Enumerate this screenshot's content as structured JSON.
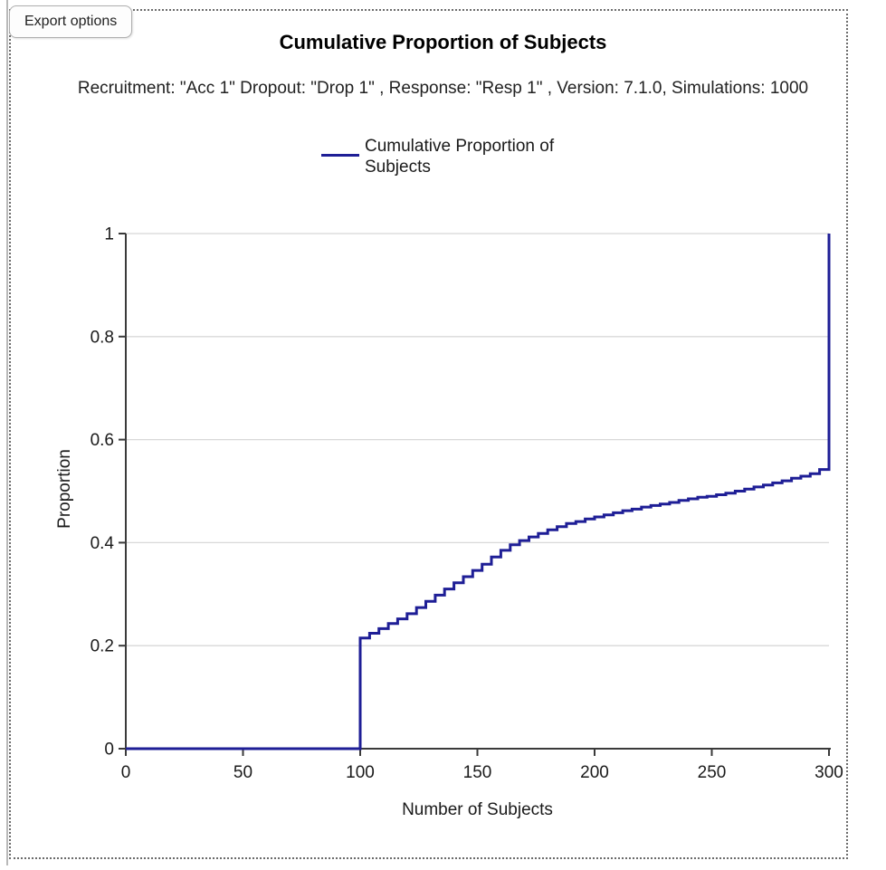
{
  "toolbar": {
    "export_button_label": "Export options"
  },
  "colors": {
    "line": "#1e1e96",
    "grid": "#d8d8d8",
    "axis": "#3a3a3a",
    "tick_text": "#1a1a1a",
    "dotted_border": "#6b6b6b"
  },
  "chart_data": {
    "type": "line",
    "title": "Cumulative Proportion of Subjects",
    "subtitle": "Recruitment: \"Acc 1\" Dropout: \"Drop 1\" , Response: \"Resp 1\" , Version: 7.1.0, Simulations: 1000",
    "xlabel": "Number of Subjects",
    "ylabel": "Proportion",
    "xlim": [
      0,
      300
    ],
    "ylim": [
      0,
      1
    ],
    "x_ticks": [
      0,
      50,
      100,
      150,
      200,
      250,
      300
    ],
    "y_ticks": [
      0,
      0.2,
      0.4,
      0.6,
      0.8,
      1
    ],
    "y_tick_labels": [
      "0",
      "0.2",
      "0.4",
      "0.6",
      "0.8",
      "1"
    ],
    "grid": "horizontal",
    "legend_position": "top-center",
    "series": [
      {
        "name": "Cumulative Proportion of Subjects",
        "color": "#1e1e96",
        "step": true,
        "points": [
          [
            0,
            0
          ],
          [
            100,
            0
          ],
          [
            100,
            0.215
          ],
          [
            104,
            0.224
          ],
          [
            108,
            0.233
          ],
          [
            112,
            0.243
          ],
          [
            116,
            0.252
          ],
          [
            120,
            0.262
          ],
          [
            124,
            0.274
          ],
          [
            128,
            0.286
          ],
          [
            132,
            0.298
          ],
          [
            136,
            0.31
          ],
          [
            140,
            0.322
          ],
          [
            144,
            0.334
          ],
          [
            148,
            0.346
          ],
          [
            152,
            0.358
          ],
          [
            156,
            0.372
          ],
          [
            160,
            0.385
          ],
          [
            164,
            0.396
          ],
          [
            168,
            0.404
          ],
          [
            172,
            0.411
          ],
          [
            176,
            0.418
          ],
          [
            180,
            0.425
          ],
          [
            184,
            0.431
          ],
          [
            188,
            0.437
          ],
          [
            192,
            0.441
          ],
          [
            196,
            0.446
          ],
          [
            200,
            0.45
          ],
          [
            204,
            0.454
          ],
          [
            208,
            0.458
          ],
          [
            212,
            0.462
          ],
          [
            216,
            0.465
          ],
          [
            220,
            0.469
          ],
          [
            224,
            0.472
          ],
          [
            228,
            0.475
          ],
          [
            232,
            0.478
          ],
          [
            236,
            0.482
          ],
          [
            240,
            0.485
          ],
          [
            244,
            0.488
          ],
          [
            248,
            0.49
          ],
          [
            252,
            0.493
          ],
          [
            256,
            0.496
          ],
          [
            260,
            0.5
          ],
          [
            264,
            0.504
          ],
          [
            268,
            0.508
          ],
          [
            272,
            0.512
          ],
          [
            276,
            0.516
          ],
          [
            280,
            0.52
          ],
          [
            284,
            0.525
          ],
          [
            288,
            0.529
          ],
          [
            292,
            0.534
          ],
          [
            296,
            0.542
          ],
          [
            300,
            0.548
          ],
          [
            300,
            1
          ]
        ]
      }
    ]
  }
}
